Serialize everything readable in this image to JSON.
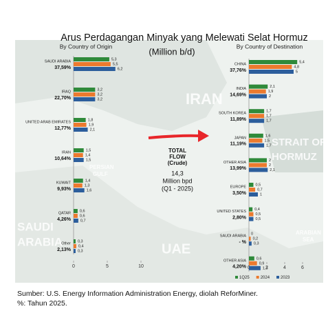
{
  "header": {
    "title": "Arus Perdagangan Minyak yang Melewati Selat Hormuz",
    "subtitle": "(Million b/d)"
  },
  "map_labels": [
    "IRAN",
    "STRAIT OF",
    "HORMUZ",
    "PERSIAN",
    "GULF",
    "UAE",
    "SAUDI",
    "ARABIA",
    "ARABIAN",
    "SEA"
  ],
  "center_note": {
    "heading": [
      "TOTAL",
      "FLOW",
      "(Crude)"
    ],
    "value": "14,3",
    "unit": "Million bpd",
    "period": "(Q1 - 2025)"
  },
  "chart_data": [
    {
      "type": "bar",
      "orientation": "horizontal",
      "title": "By Country of Origin",
      "categories": [
        "SAUDI ARABIA",
        "IRAQ",
        "UNITED ARAB EMIRATES",
        "IRAN",
        "KUWAIT",
        "QATAR",
        "Other"
      ],
      "category_shares": [
        "37,59%",
        "22,70%",
        "12,77%",
        "10,64%",
        "9,93%",
        "4,26%",
        "2,13%"
      ],
      "series": [
        {
          "color": "#2f8a3a",
          "values": [
            5.3,
            3.2,
            1.8,
            1.5,
            1.4,
            0.6,
            0.3
          ],
          "value_labels": [
            "5,3",
            "3,2",
            "1,8",
            "1,5",
            "1,4",
            "0,6",
            "0,3"
          ]
        },
        {
          "color": "#ec7a2e",
          "values": [
            5.5,
            3.2,
            1.9,
            1.4,
            1.3,
            0.6,
            0.4
          ],
          "value_labels": [
            "5,5",
            "3,2",
            "1,9",
            "1,4",
            "1,3",
            "0,6",
            "0,4"
          ]
        },
        {
          "color": "#2c5e9c",
          "values": [
            6.2,
            3.2,
            2.1,
            1.5,
            1.6,
            0.7,
            0.3
          ],
          "value_labels": [
            "6,2",
            "3,2",
            "2,1",
            "1,5",
            "1,6",
            "0,7",
            "0,3"
          ]
        }
      ],
      "xlim": [
        0,
        10
      ],
      "xticks": [
        0,
        5,
        10
      ]
    },
    {
      "type": "bar",
      "orientation": "horizontal",
      "title": "By Country of Destination",
      "categories": [
        "CHINA",
        "INDIA",
        "SOUTH KOREA",
        "JAPAN",
        "OTHER ASIA",
        "EUROPE",
        "UNITED STATES",
        "SAUDI ARABIA",
        "OTHER ASIA"
      ],
      "category_shares": [
        "37,76%",
        "14,69%",
        "11,89%",
        "11,19%",
        "13,99%",
        "3,50%",
        "2,80%",
        "- %",
        "4,20%"
      ],
      "series": [
        {
          "name": "1Q25",
          "color": "#2f8a3a",
          "values": [
            5.4,
            2.1,
            1.7,
            1.6,
            2,
            0.5,
            0.4,
            0,
            0.6
          ],
          "value_labels": [
            "5,4",
            "2,1",
            "1,7",
            "1,6",
            "2",
            "0,5",
            "0,4",
            "0",
            "0,6"
          ]
        },
        {
          "name": "2024",
          "color": "#ec7a2e",
          "values": [
            4.8,
            1.9,
            1.7,
            1.5,
            2,
            0.7,
            0.5,
            0.2,
            0.9
          ],
          "value_labels": [
            "4,8",
            "1,9",
            "1,7",
            "1,5",
            "2",
            "0,7",
            "0,5",
            "0,2",
            "0,9"
          ]
        },
        {
          "name": "2023",
          "color": "#2c5e9c",
          "values": [
            5,
            2,
            1.7,
            1.7,
            2.1,
            1,
            0.5,
            0.3,
            1.3
          ],
          "value_labels": [
            "5",
            "2",
            "1,7",
            "1,7",
            "2,1",
            "1",
            "0,5",
            "0,3",
            "1,3"
          ]
        }
      ],
      "xlim": [
        0,
        6
      ],
      "xticks": [
        0,
        2,
        4,
        6
      ],
      "legend": "bottom"
    }
  ],
  "footer": [
    "Sumber: U.S. Energy Information Administration Energy, diolah ReforMiner.",
    "%: Tahun 2025."
  ]
}
